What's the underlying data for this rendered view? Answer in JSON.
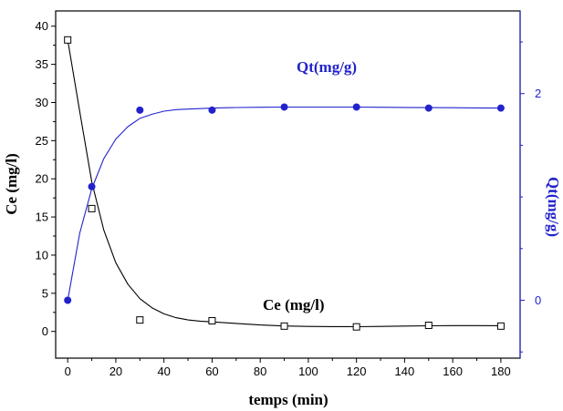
{
  "chart_data": {
    "type": "line",
    "xlabel": "temps (min)",
    "ylabel_left": "Ce (mg/l)",
    "ylabel_right": "Qt(mg/g)",
    "xlim": [
      -5,
      188
    ],
    "ylim_left": [
      -3.5,
      42
    ],
    "ylim_right": [
      -0.56,
      2.8
    ],
    "x_ticks": [
      0,
      20,
      40,
      60,
      80,
      100,
      120,
      140,
      160,
      180
    ],
    "y_left_ticks": [
      0,
      5,
      10,
      15,
      20,
      25,
      30,
      35,
      40
    ],
    "y_right_ticks": [
      0,
      2
    ],
    "grid": false,
    "annotations": [
      {
        "text": "Ce (mg/l)",
        "series": "Ce"
      },
      {
        "text": "Qt(mg/g)",
        "series": "Qt"
      }
    ],
    "series": [
      {
        "name": "Ce (mg/l)",
        "axis": "left",
        "color": "#000000",
        "marker": "open-square",
        "x": [
          0,
          10,
          30,
          60,
          90,
          120,
          150,
          180
        ],
        "y": [
          38.2,
          16.1,
          1.5,
          1.4,
          0.7,
          0.6,
          0.8,
          0.7
        ],
        "fit_x": [
          0,
          5,
          10,
          15,
          20,
          25,
          30,
          35,
          40,
          45,
          50,
          55,
          60,
          70,
          80,
          90,
          100,
          110,
          120,
          130,
          140,
          150,
          160,
          170,
          180
        ],
        "fit_y": [
          38.2,
          28.8,
          19.6,
          13.3,
          9.0,
          6.2,
          4.3,
          3.1,
          2.3,
          1.8,
          1.5,
          1.35,
          1.25,
          1.05,
          0.85,
          0.72,
          0.66,
          0.63,
          0.62,
          0.65,
          0.7,
          0.74,
          0.76,
          0.76,
          0.75
        ]
      },
      {
        "name": "Qt(mg/g)",
        "axis": "right",
        "color": "#2222cc",
        "marker": "filled-circle",
        "x": [
          0,
          10,
          30,
          60,
          90,
          120,
          150,
          180
        ],
        "y": [
          0.0,
          1.1,
          1.84,
          1.84,
          1.87,
          1.87,
          1.86,
          1.86
        ],
        "fit_x": [
          0,
          5,
          10,
          15,
          20,
          25,
          30,
          35,
          40,
          45,
          50,
          55,
          60,
          70,
          80,
          90,
          100,
          110,
          120,
          130,
          140,
          150,
          160,
          170,
          180
        ],
        "fit_y": [
          0.0,
          0.65,
          1.08,
          1.37,
          1.56,
          1.68,
          1.76,
          1.8,
          1.83,
          1.845,
          1.85,
          1.855,
          1.86,
          1.865,
          1.868,
          1.87,
          1.87,
          1.87,
          1.87,
          1.868,
          1.866,
          1.864,
          1.863,
          1.862,
          1.86
        ]
      }
    ]
  }
}
